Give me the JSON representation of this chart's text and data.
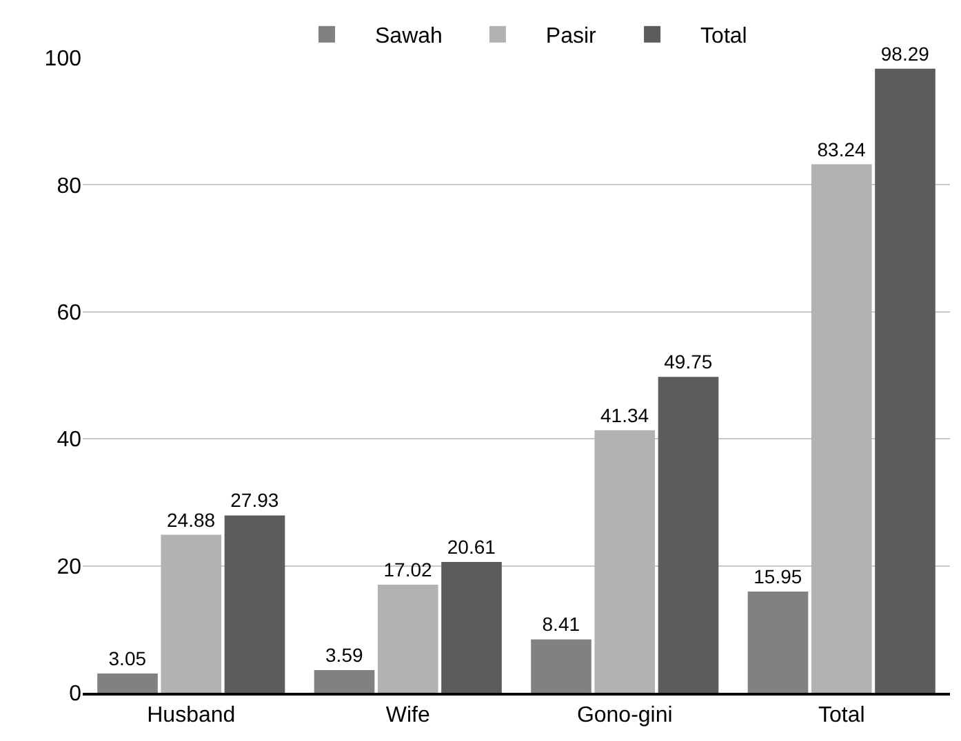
{
  "chart_data": {
    "type": "bar",
    "categories": [
      "Husband",
      "Wife",
      "Gono-gini",
      "Total"
    ],
    "series": [
      {
        "name": "Sawah",
        "color": "#7f8280",
        "values": [
          3.05,
          3.59,
          8.41,
          15.95
        ]
      },
      {
        "name": "Pasir",
        "color": "#b2b2b2",
        "values": [
          24.88,
          17.02,
          41.34,
          83.24
        ]
      },
      {
        "name": "Total",
        "color": "#5b5c5b",
        "values": [
          27.93,
          20.61,
          49.75,
          98.29
        ]
      }
    ],
    "ylim": [
      0,
      100
    ],
    "yticks": [
      0,
      20,
      40,
      60,
      80,
      100
    ],
    "grid": "y",
    "legend": "top",
    "data_labels": true
  }
}
